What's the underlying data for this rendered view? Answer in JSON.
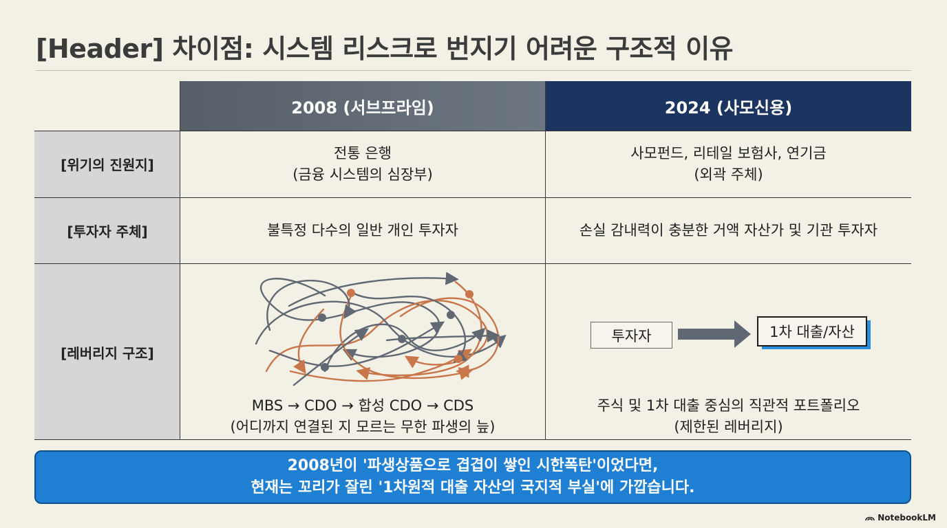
{
  "header": {
    "title": "[Header] 차이점: 시스템 리스크로 번지기 어려운 구조적 이유"
  },
  "table": {
    "columns": [
      "2008 (서브프라임)",
      "2024 (사모신용)"
    ],
    "rows": [
      {
        "label": "[위기의 진원지]",
        "c2008": [
          "전통 은행",
          "(금융 시스템의 심장부)"
        ],
        "c2024": [
          "사모펀드, 리테일 보험사, 연기금",
          "(외곽 주체)"
        ]
      },
      {
        "label": "[투자자 주체]",
        "c2008": [
          "불특정 다수의 일반 개인 투자자"
        ],
        "c2024": [
          "손실 감내력이 충분한 거액 자산가 및 기관 투자자"
        ]
      },
      {
        "label": "[레버리지 구조]",
        "c2008": [
          "MBS → CDO → 합성 CDO → CDS",
          "(어디까지 연결된 지 모르는 무한 파생의 늪)"
        ],
        "c2024": [
          "주식 및 1차 대출 중심의 직관적 포트폴리오",
          "(제한된 레버리지)"
        ]
      }
    ],
    "flow": {
      "from": "투자자",
      "to": "1차 대출/자산"
    }
  },
  "callout": {
    "line1": "2008년이 '파생상품으로 겹겹이 쌓인 시한폭탄'이었다면,",
    "line2": "현재는 꼬리가 잘린 '1차원적 대출 자산의 국지적 부실'에 가깝습니다."
  },
  "branding": {
    "label": "NotebookLM"
  },
  "colors": {
    "accent_blue": "#1f7fd3",
    "navy": "#1c3560",
    "slate": "#5f6873",
    "orange": "#c8764a"
  },
  "icons": {
    "tangled_network": "tangled-derivatives-network-icon",
    "flow_arrow": "right-arrow-icon",
    "brand": "notebooklm-logo-icon"
  }
}
